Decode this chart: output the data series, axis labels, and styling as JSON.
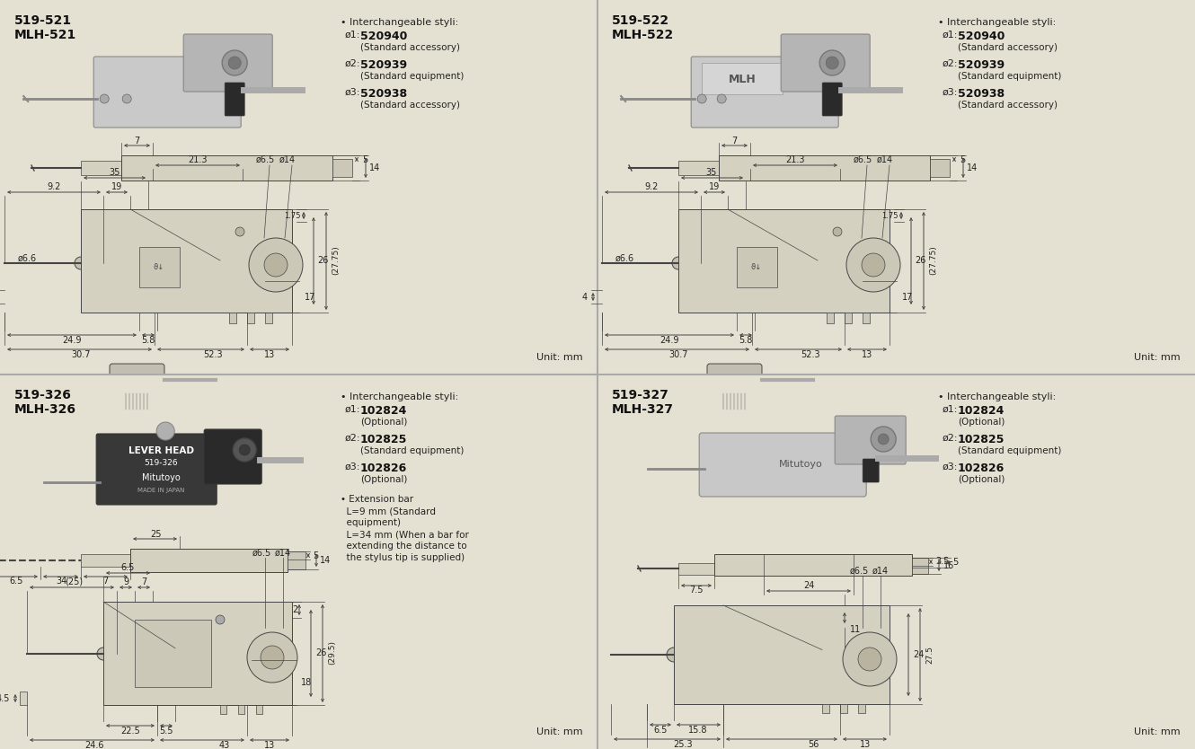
{
  "bg_color": "#e5e1d2",
  "panel_bg": "#e5e1d2",
  "line_color": "#454545",
  "text_color": "#222222",
  "panels": {
    "TL": {
      "model_num": "519-521",
      "model_name": "MLH-521",
      "styli": [
        {
          "dia": "ø1:",
          "code": "520940",
          "desc": "(Standard accessory)"
        },
        {
          "dia": "ø2:",
          "code": "520939",
          "desc": "(Standard equipment)"
        },
        {
          "dia": "ø3:",
          "code": "520938",
          "desc": "(Standard accessory)"
        }
      ]
    },
    "TR": {
      "model_num": "519-522",
      "model_name": "MLH-522",
      "styli": [
        {
          "dia": "ø1:",
          "code": "520940",
          "desc": "(Standard accessory)"
        },
        {
          "dia": "ø2:",
          "code": "520939",
          "desc": "(Standard equipment)"
        },
        {
          "dia": "ø3:",
          "code": "520938",
          "desc": "(Standard accessory)"
        }
      ]
    },
    "BL": {
      "model_num": "519-326",
      "model_name": "MLH-326",
      "styli": [
        {
          "dia": "ø1:",
          "code": "102824",
          "desc": "(Optional)"
        },
        {
          "dia": "ø2:",
          "code": "102825",
          "desc": "(Standard equipment)"
        },
        {
          "dia": "ø3:",
          "code": "102826",
          "desc": "(Optional)"
        }
      ],
      "extension": "• Extension bar\n  L=9 mm (Standard\n  equipment)\n  L=34 mm (When a bar for\n  extending the distance to\n  the stylus tip is supplied)"
    },
    "BR": {
      "model_num": "519-327",
      "model_name": "MLH-327",
      "styli": [
        {
          "dia": "ø1:",
          "code": "102824",
          "desc": "(Optional)"
        },
        {
          "dia": "ø2:",
          "code": "102825",
          "desc": "(Standard equipment)"
        },
        {
          "dia": "ø3:",
          "code": "102826",
          "desc": "(Optional)"
        }
      ]
    }
  }
}
